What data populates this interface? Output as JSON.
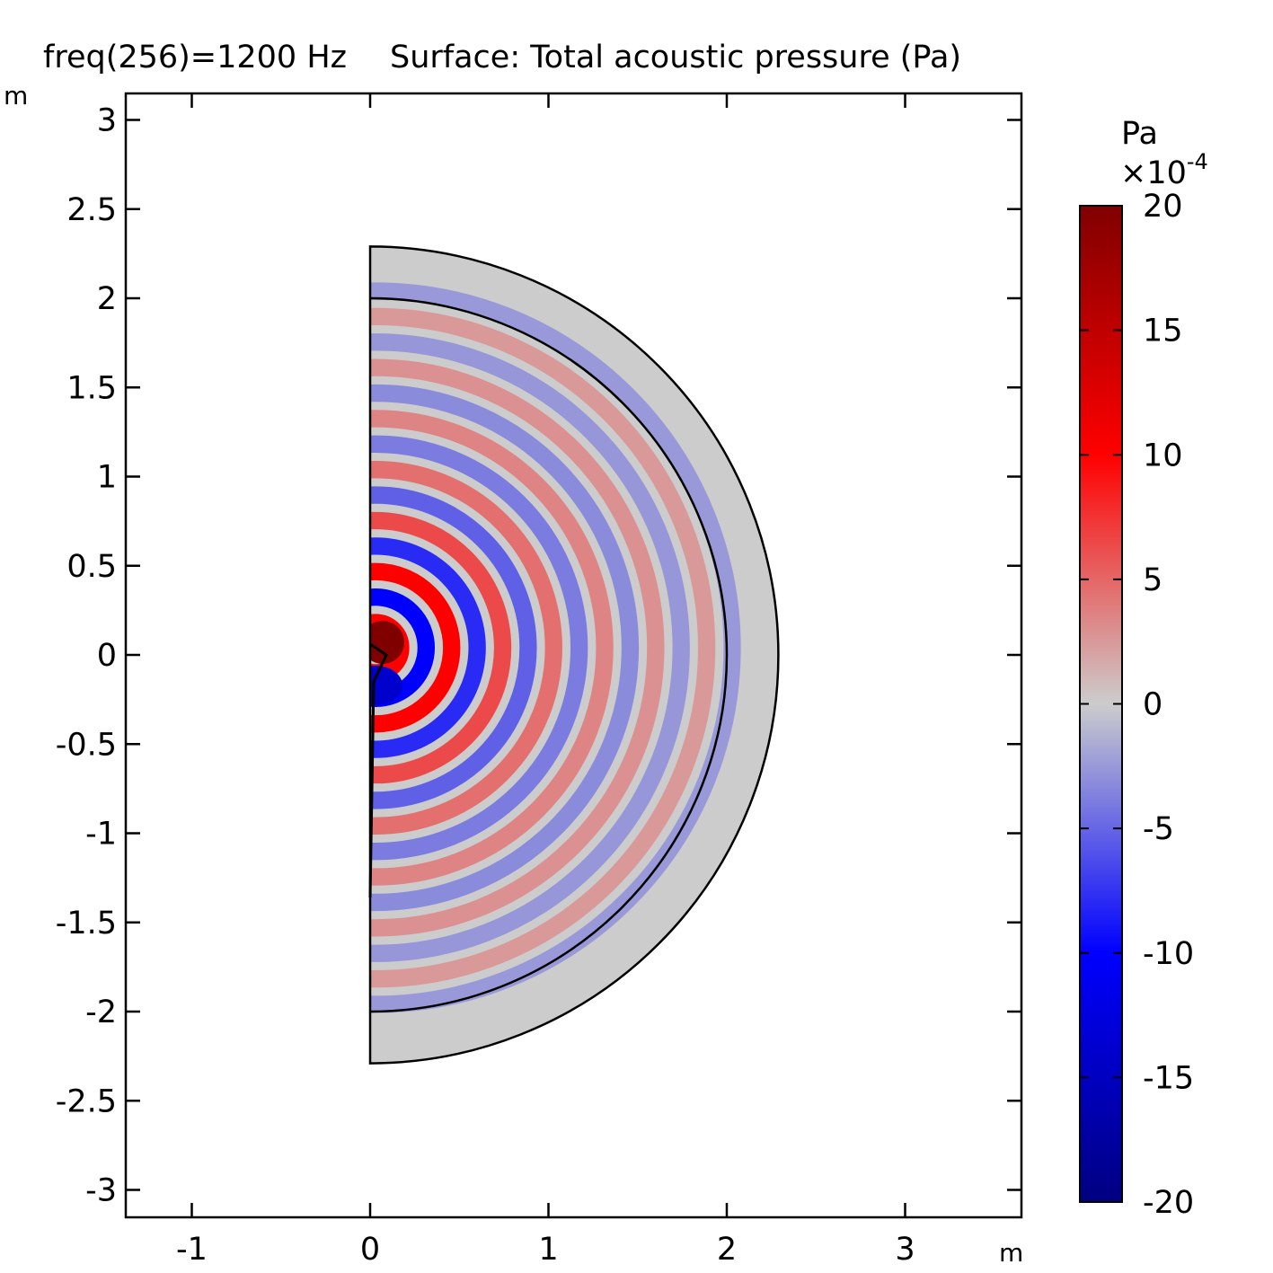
{
  "chart_data": {
    "type": "heatmap",
    "title_parts": [
      "freq(256)=1200 Hz",
      "Surface: Total acoustic pressure (Pa)"
    ],
    "x_unit": "m",
    "y_unit": "m",
    "xlim": [
      -1.37,
      3.64
    ],
    "ylim": [
      -3.15,
      3.15
    ],
    "x_ticks": [
      -1,
      0,
      1,
      2,
      3
    ],
    "x_tick_labels": [
      "-1",
      "0",
      "1",
      "2",
      "3"
    ],
    "y_ticks": [
      3,
      2.5,
      2,
      1.5,
      1,
      0.5,
      0,
      -0.5,
      -1,
      -1.5,
      -2,
      -2.5,
      -3
    ],
    "y_tick_labels": [
      "3",
      "2.5",
      "2",
      "1.5",
      "1",
      "0.5",
      "0",
      "-0.5",
      "-1",
      "-1.5",
      "-2",
      "-2.5",
      "-3"
    ],
    "geometry": {
      "inner_radius": 2.0,
      "outer_radius": 2.29,
      "ring_period": 0.286
    },
    "colorbar": {
      "unit": "Pa",
      "multiplier_base": "×10",
      "multiplier_exp": "-4",
      "range": [
        -20,
        20
      ],
      "ticks": [
        20,
        15,
        10,
        5,
        0,
        -5,
        -10,
        -15,
        -20
      ],
      "tick_labels": [
        "20",
        "15",
        "10",
        "5",
        "0",
        "-5",
        "-10",
        "-15",
        "-20"
      ],
      "colormap": [
        "#000080",
        "#0000ff",
        "#cccccc",
        "#ff0000",
        "#800000"
      ]
    }
  }
}
